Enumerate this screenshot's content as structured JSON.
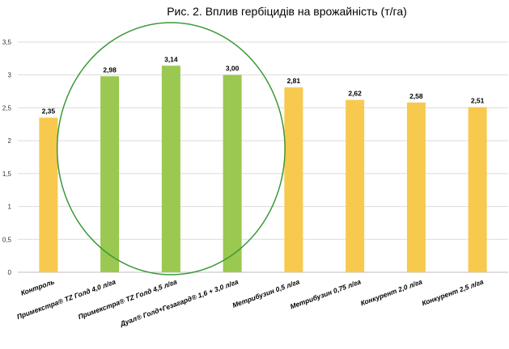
{
  "chart_data": {
    "type": "bar",
    "title": "Рис. 2. Вплив гербіцидів на врожайність (т/га)",
    "categories": [
      "Контроль",
      "Примекстра® TZ Голд 4,0 л/га",
      "Примекстра® TZ Голд 4,5 л/га",
      "Дуал® Голд+Гезагард® 1,6 + 3,0 л/га",
      "Метрибузин 0,5 л/га",
      "Метрибузин 0,75 л/га",
      "Конкурент 2,0 л/га",
      "Конкурент 2,5 л/га"
    ],
    "values": [
      2.35,
      2.98,
      3.14,
      3.0,
      2.81,
      2.62,
      2.58,
      2.51
    ],
    "data_labels": [
      "2,35",
      "2,98",
      "3,14",
      "3,00",
      "2,81",
      "2,62",
      "2,58",
      "2,51"
    ],
    "bar_colors": [
      "#f7c94e",
      "#9bc850",
      "#9bc850",
      "#9bc850",
      "#f7c94e",
      "#f7c94e",
      "#f7c94e",
      "#f7c94e"
    ],
    "ylim": [
      0,
      3.5
    ],
    "yticks": [
      0,
      0.5,
      1,
      1.5,
      2,
      2.5,
      3,
      3.5
    ],
    "ytick_labels": [
      "0",
      "0,5",
      "1",
      "1,5",
      "2",
      "2,5",
      "3",
      "3,5"
    ],
    "grid": true,
    "annotation": {
      "shape": "ellipse",
      "color": "#3a9a3a",
      "encloses": [
        "Примекстра® TZ Голд 4,0 л/га",
        "Примекстра® TZ Голд 4,5 л/га",
        "Дуал® Голд+Гезагард® 1,6 + 3,0 л/га"
      ]
    },
    "xlabel": "",
    "ylabel": ""
  }
}
